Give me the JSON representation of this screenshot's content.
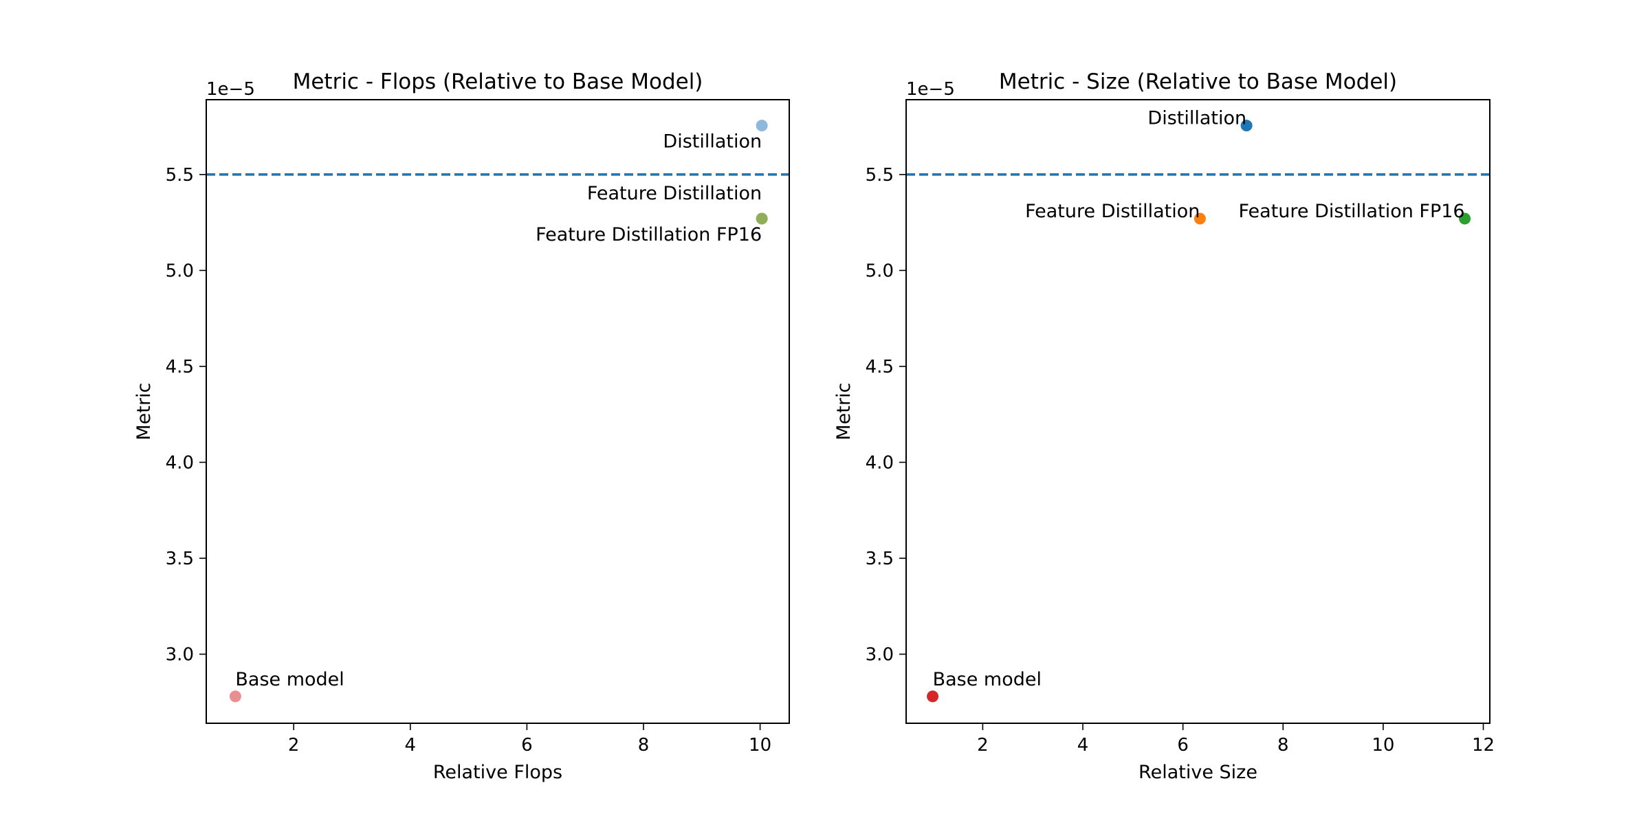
{
  "chart_data": [
    {
      "type": "scatter",
      "title": "Metric - Flops (Relative to Base Model)",
      "xlabel": "Relative Flops",
      "ylabel": "Metric",
      "xlim": [
        0.5,
        10.5
      ],
      "ylim": [
        2.64e-05,
        5.89e-05
      ],
      "y_offset_label": "1e−5",
      "y_scale": 1e-05,
      "xticks": [
        2,
        4,
        6,
        8,
        10
      ],
      "xtick_labels": [
        "2",
        "4",
        "6",
        "8",
        "10"
      ],
      "yticks": [
        3.0,
        3.5,
        4.0,
        4.5,
        5.0,
        5.5
      ],
      "ytick_labels": [
        "3.0",
        "3.5",
        "4.0",
        "4.5",
        "5.0",
        "5.5"
      ],
      "hline": {
        "y": 5.5e-05,
        "color": "#1f77b4",
        "style": "dashed"
      },
      "points": [
        {
          "name": "Distillation",
          "x": 10.03,
          "y": 5.755e-05,
          "color": "#8fb8dc",
          "label_anchor": "right-below"
        },
        {
          "name": "Feature Distillation",
          "x": 10.03,
          "y": 5.27e-05,
          "color": "#f5b070",
          "label_anchor": "right-above"
        },
        {
          "name": "Feature Distillation FP16",
          "x": 10.03,
          "y": 5.27e-05,
          "color": "#8fae5a",
          "label_anchor": "right-below"
        },
        {
          "name": "Base model",
          "x": 1.0,
          "y": 2.78e-05,
          "color": "#ea8f90",
          "label_anchor": "left-above"
        }
      ]
    },
    {
      "type": "scatter",
      "title": "Metric - Size (Relative to Base Model)",
      "xlabel": "Relative Size",
      "ylabel": "Metric",
      "xlim": [
        0.47,
        12.13
      ],
      "ylim": [
        2.64e-05,
        5.89e-05
      ],
      "y_offset_label": "1e−5",
      "y_scale": 1e-05,
      "xticks": [
        2,
        4,
        6,
        8,
        10,
        12
      ],
      "xtick_labels": [
        "2",
        "4",
        "6",
        "8",
        "10",
        "12"
      ],
      "yticks": [
        3.0,
        3.5,
        4.0,
        4.5,
        5.0,
        5.5
      ],
      "ytick_labels": [
        "3.0",
        "3.5",
        "4.0",
        "4.5",
        "5.0",
        "5.5"
      ],
      "hline": {
        "y": 5.5e-05,
        "color": "#1f77b4",
        "style": "dashed"
      },
      "points": [
        {
          "name": "Distillation",
          "x": 7.27,
          "y": 5.755e-05,
          "color": "#1f77b4",
          "label_anchor": "right-above"
        },
        {
          "name": "Feature Distillation",
          "x": 6.34,
          "y": 5.27e-05,
          "color": "#ff7f0e",
          "label_anchor": "right-above"
        },
        {
          "name": "Feature Distillation FP16",
          "x": 11.63,
          "y": 5.27e-05,
          "color": "#2ca02c",
          "label_anchor": "right-above"
        },
        {
          "name": "Base model",
          "x": 1.0,
          "y": 2.78e-05,
          "color": "#d62728",
          "label_anchor": "left-above"
        }
      ]
    }
  ]
}
